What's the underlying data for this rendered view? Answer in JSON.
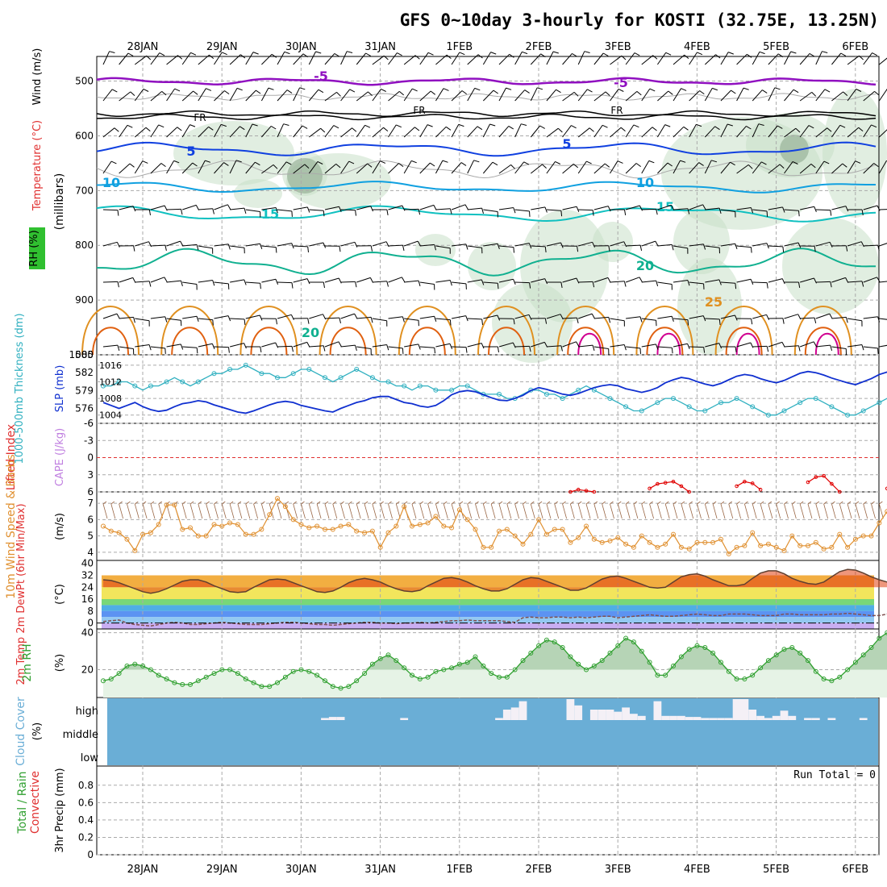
{
  "title": "GFS 0~10day 3-hourly for KOSTI (32.75E, 13.25N)",
  "dates": [
    "28JAN",
    "29JAN",
    "30JAN",
    "31JAN",
    "1FEB",
    "2FEB",
    "3FEB",
    "4FEB",
    "5FEB",
    "6FEB"
  ],
  "colors": {
    "wind_barb": "#000000",
    "temp_purple": "#9010c0",
    "temp_blue": "#1040e0",
    "temp_lightblue": "#10a0e0",
    "temp_cyan": "#10c0c0",
    "temp_green": "#10b090",
    "temp_orange": "#e09020",
    "temp_darkorange": "#e06010",
    "temp_magenta": "#d00090",
    "rh_shade": "#c8e0c8",
    "slp": "#1030d0",
    "thickness": "#30b0c0",
    "lifted_index": "#e00000",
    "wind10m": "#e09030",
    "rh2m": "#30a030",
    "cloud": "#6aaed6",
    "precip_total": "#30a030",
    "precip_conv": "#e03030"
  },
  "panels": {
    "upper": {
      "ylabel_rh": "RH (%)",
      "ylabel_temp": "Temperature (°C)",
      "ylabel_wind": "Wind (m/s)",
      "ylabel_mb": "(millibars)",
      "pressure_ticks": [
        "500",
        "600",
        "700",
        "800",
        "900",
        "1000"
      ],
      "contour_labels": [
        {
          "text": "-5",
          "color": "temp_purple"
        },
        {
          "text": "-5",
          "color": "temp_purple"
        },
        {
          "text": "FR",
          "color": "wind_barb"
        },
        {
          "text": "FR",
          "color": "wind_barb"
        },
        {
          "text": "FR",
          "color": "wind_barb"
        },
        {
          "text": "5",
          "color": "temp_blue"
        },
        {
          "text": "5",
          "color": "temp_blue"
        },
        {
          "text": "10",
          "color": "temp_lightblue"
        },
        {
          "text": "10",
          "color": "temp_lightblue"
        },
        {
          "text": "15",
          "color": "temp_cyan"
        },
        {
          "text": "15",
          "color": "temp_cyan"
        },
        {
          "text": "20",
          "color": "temp_green"
        },
        {
          "text": "20",
          "color": "temp_green"
        },
        {
          "text": "25",
          "color": "temp_orange"
        }
      ]
    },
    "slp": {
      "ylabel_thick": "1000-500mb Thickness (dm)",
      "ylabel_slp": "SLP (mb)",
      "left_ticks": [
        "585",
        "582",
        "579",
        "576"
      ],
      "right_ticks": [
        "1016",
        "1012",
        "1008",
        "1004"
      ]
    },
    "cape": {
      "ylabel_li": "Lifted Index",
      "ylabel_cape": "CAPE (J/kg)",
      "ticks": [
        "-6",
        "-3",
        "0",
        "3",
        "6"
      ]
    },
    "wind10m": {
      "ylabel": "10m Wind Speed & Barbs",
      "ylabel_unit": "(m/s)",
      "ticks": [
        "7",
        "6",
        "5",
        "4"
      ]
    },
    "temp2m": {
      "ylabel": "2m Temp 2m DewPt (6hr Min/Max)",
      "ylabel_unit": "(°C)",
      "ticks": [
        "40",
        "32",
        "24",
        "16",
        "8",
        "0"
      ]
    },
    "rh2m": {
      "ylabel": "2m RH",
      "ylabel_unit": "(%)",
      "ticks": [
        "40",
        "20"
      ]
    },
    "cloud": {
      "ylabel": "Cloud Cover",
      "ylabel_unit": "(%)",
      "levels": [
        "high",
        "middle",
        "low"
      ]
    },
    "precip": {
      "ylabel_total": "Total / Rain",
      "ylabel_conv": "Convective",
      "ylabel_unit": "3hr Precip (mm)",
      "ticks": [
        "0.8",
        "0.6",
        "0.4",
        "0.2",
        "0"
      ],
      "run_total": "Run Total = 0"
    }
  },
  "chart_data": [
    {
      "type": "line",
      "name": "SLP & 1000-500mb thickness",
      "x": "3-hourly steps, 28JAN to 6FEB",
      "series": [
        {
          "name": "SLP (mb)",
          "axis": "right",
          "range": [
            1002,
            1018
          ],
          "values": [
            1011,
            1011,
            1012,
            1012,
            1011,
            1010,
            1011,
            1011,
            1012,
            1013,
            1012,
            1011,
            1012,
            1013,
            1014,
            1014,
            1015,
            1015,
            1016,
            1015,
            1014,
            1014,
            1013,
            1013,
            1014,
            1015,
            1015,
            1014,
            1013,
            1012,
            1013,
            1014,
            1015,
            1014,
            1013,
            1012,
            1012,
            1011,
            1011,
            1010,
            1011,
            1011,
            1010,
            1010,
            1010,
            1011,
            1011,
            1010,
            1009,
            1009,
            1009,
            1008,
            1008,
            1009,
            1010,
            1010,
            1009,
            1009,
            1008,
            1009,
            1010,
            1011,
            1010,
            1009,
            1008,
            1007,
            1006,
            1005,
            1005,
            1006,
            1007,
            1008,
            1008,
            1007,
            1006,
            1005,
            1005,
            1006,
            1007,
            1007,
            1008,
            1007,
            1006,
            1005,
            1004,
            1004,
            1005,
            1006,
            1007,
            1008,
            1008,
            1007,
            1006,
            1005,
            1004,
            1004,
            1005,
            1006,
            1007,
            1008,
            1009,
            1010
          ]
        },
        {
          "name": "1000-500mb thickness (dm)",
          "axis": "left",
          "range": [
            574,
            585
          ],
          "values": [
            577,
            576.5,
            576,
            576.5,
            577,
            576.3,
            575.8,
            575.5,
            575.7,
            576.3,
            576.8,
            577,
            577.3,
            577.1,
            576.6,
            576.2,
            575.8,
            575.4,
            575.2,
            575.6,
            576.1,
            576.6,
            577,
            577.2,
            577,
            576.5,
            576.2,
            575.9,
            575.6,
            575.4,
            576,
            576.5,
            577,
            577.3,
            577.8,
            578,
            578,
            577.5,
            577,
            576.8,
            576.4,
            576.2,
            576.5,
            577.3,
            578.3,
            578.8,
            579,
            578.8,
            578.3,
            577.8,
            577.4,
            577.3,
            577.7,
            578.2,
            579,
            579.5,
            579.2,
            578.8,
            578.4,
            578.2,
            578.5,
            579,
            579.5,
            579.8,
            580,
            579.8,
            579.3,
            579,
            578.7,
            579,
            579.5,
            580.3,
            580.8,
            581.2,
            581,
            580.5,
            580.1,
            579.8,
            580.2,
            580.8,
            581.4,
            581.7,
            581.5,
            581,
            580.6,
            580.3,
            580.7,
            581.3,
            581.9,
            582.2,
            582,
            581.6,
            581.1,
            580.7,
            580.3,
            580,
            580.5,
            581,
            581.7,
            582.1,
            581.8,
            580.3
          ]
        }
      ]
    },
    {
      "type": "line",
      "name": "Lifted Index",
      "range": [
        -6,
        6
      ],
      "points": [
        [
          59,
          6
        ],
        [
          60,
          5.6
        ],
        [
          61,
          5.8
        ],
        [
          62,
          6
        ],
        [
          69,
          5.4
        ],
        [
          70,
          4.6
        ],
        [
          71,
          4.4
        ],
        [
          72,
          4.2
        ],
        [
          73,
          5
        ],
        [
          74,
          6
        ],
        [
          80,
          5
        ],
        [
          81,
          4.2
        ],
        [
          82,
          4.5
        ],
        [
          83,
          5.6
        ],
        [
          89,
          4.3
        ],
        [
          90,
          3.4
        ],
        [
          91,
          3.2
        ],
        [
          92,
          4.6
        ],
        [
          93,
          6
        ],
        [
          99,
          5.4
        ],
        [
          100,
          4.3
        ],
        [
          101,
          6
        ]
      ]
    },
    {
      "type": "line",
      "name": "10m wind speed (m/s)",
      "range": [
        3.6,
        7.6
      ],
      "values": [
        5.6,
        5.3,
        5.2,
        4.8,
        4.1,
        5.1,
        5.2,
        5.7,
        6.9,
        6.9,
        5.4,
        5.5,
        5.0,
        5.0,
        5.7,
        5.6,
        5.8,
        5.7,
        5.1,
        5.1,
        5.4,
        6.3,
        7.3,
        6.8,
        6.0,
        5.7,
        5.5,
        5.6,
        5.4,
        5.4,
        5.6,
        5.7,
        5.3,
        5.2,
        5.3,
        4.3,
        5.2,
        5.6,
        6.8,
        5.6,
        5.7,
        5.8,
        6.2,
        5.6,
        5.5,
        6.6,
        6.0,
        5.4,
        4.3,
        4.3,
        5.3,
        5.4,
        5.0,
        4.5,
        5.1,
        6.0,
        5.1,
        5.4,
        5.4,
        4.6,
        4.9,
        5.6,
        4.8,
        4.6,
        4.7,
        4.9,
        4.5,
        4.3,
        5.0,
        4.6,
        4.3,
        4.5,
        5.1,
        4.3,
        4.2,
        4.6,
        4.6,
        4.6,
        4.8,
        3.9,
        4.3,
        4.4,
        5.2,
        4.4,
        4.5,
        4.3,
        4.1,
        5.0,
        4.4,
        4.4,
        4.6,
        4.2,
        4.3,
        5.1,
        4.3,
        4.8,
        5.0,
        5.0,
        5.8,
        6.5,
        7.4,
        6.6,
        7.2
      ]
    },
    {
      "type": "area",
      "name": "2m temperature (°C)",
      "range": [
        -4,
        42
      ],
      "values": [
        29,
        28.5,
        27,
        25,
        23,
        21,
        20,
        21,
        23,
        25.5,
        28,
        29,
        29,
        27.5,
        25,
        23,
        21,
        20.5,
        21,
        24,
        26.5,
        29,
        29.5,
        29,
        27,
        25,
        23,
        21,
        20.5,
        21.5,
        24,
        27,
        29,
        30,
        29,
        27.5,
        25,
        23,
        21.5,
        21,
        22,
        25,
        27.5,
        30,
        30.5,
        29.5,
        27.5,
        25,
        23,
        21.5,
        21.5,
        23,
        26,
        29,
        30.5,
        30,
        28,
        26,
        24,
        22,
        22,
        23.5,
        26.5,
        29.5,
        31,
        31.5,
        30,
        28,
        26,
        24,
        23.5,
        24,
        27.5,
        31,
        32.5,
        33,
        31.5,
        29,
        27,
        25,
        25,
        26,
        30,
        33.5,
        35,
        35,
        33,
        30,
        28,
        26.5,
        26,
        27.5,
        31,
        34.5,
        36,
        35.5,
        33.5,
        31,
        29,
        27.5,
        27,
        27,
        26
      ]
    },
    {
      "type": "line",
      "name": "2m dew point (°C)",
      "values": [
        1,
        1.5,
        2,
        0,
        -1,
        -1.5,
        -2,
        -1,
        0,
        0.5,
        0,
        -1,
        -1,
        -0.5,
        0,
        0.5,
        0,
        -0.5,
        -1,
        -1,
        -1,
        -0.5,
        0,
        0.5,
        0.5,
        0,
        -0.5,
        -1,
        -1,
        -1.5,
        -1,
        -0.5,
        0,
        0.5,
        0.5,
        0,
        0,
        -0.5,
        0,
        0,
        0.5,
        0,
        0.5,
        1,
        1.5,
        1.5,
        2,
        1.5,
        1.5,
        1.5,
        1.5,
        1,
        0.5,
        3.5,
        4,
        3.5,
        3.5,
        4,
        4,
        3.5,
        4,
        3.5,
        4,
        4.5,
        4.5,
        3.5,
        4,
        4.5,
        5,
        5.5,
        5,
        4.5,
        4.5,
        5,
        5.5,
        6,
        5.5,
        5,
        5,
        6,
        6,
        6,
        5.5,
        5,
        5,
        5,
        6,
        6,
        5.5,
        5.5,
        5.5,
        5.5,
        6,
        6,
        6.5,
        6,
        5.5,
        5,
        5,
        6,
        6,
        6.5,
        6.5,
        8
      ]
    },
    {
      "type": "area",
      "name": "2m RH (%)",
      "range": [
        5,
        42
      ],
      "values": [
        14,
        15,
        18,
        22,
        23,
        22,
        20,
        17,
        15,
        13,
        12,
        12,
        14,
        16,
        18,
        20,
        20,
        18,
        15,
        13,
        11,
        11,
        13,
        16,
        19,
        20,
        19,
        17,
        14,
        11,
        10,
        11,
        14,
        18,
        23,
        26,
        28,
        25,
        21,
        17,
        15,
        16,
        19,
        20,
        21,
        23,
        24,
        27,
        22,
        18,
        16,
        16,
        20,
        25,
        29,
        33,
        36,
        35,
        32,
        27,
        23,
        20,
        22,
        25,
        29,
        33,
        37,
        35,
        30,
        24,
        17,
        17,
        22,
        27,
        31,
        33,
        32,
        29,
        24,
        19,
        15,
        15,
        17,
        21,
        25,
        28,
        31,
        32,
        29,
        25,
        19,
        15,
        14,
        16,
        20,
        24,
        28,
        32,
        37,
        40
      ]
    },
    {
      "type": "bar",
      "name": "High cloud cover (fraction)",
      "categories": "3-hourly steps",
      "values": [
        0,
        0,
        0,
        0,
        0,
        0,
        0,
        0,
        0,
        0,
        0,
        0,
        0,
        0,
        0,
        0,
        0,
        0,
        0,
        0,
        0,
        0,
        0,
        0,
        0,
        0,
        0,
        0,
        0.1,
        0.15,
        0.15,
        0,
        0,
        0,
        0,
        0,
        0,
        0,
        0.1,
        0,
        0,
        0,
        0,
        0,
        0,
        0,
        0,
        0,
        0,
        0,
        0.1,
        0.5,
        0.6,
        0.9,
        0,
        0,
        0,
        0,
        0,
        1,
        0.7,
        0,
        0.5,
        0.5,
        0.5,
        0.4,
        0.6,
        0.3,
        0.2,
        0,
        0.9,
        0.2,
        0.2,
        0.2,
        0.15,
        0.15,
        0.1,
        0.1,
        0.1,
        0.1,
        1,
        1,
        0.5,
        0.2,
        0.1,
        0.2,
        0.45,
        0.2,
        0,
        0.1,
        0.1,
        0,
        0.1,
        0,
        0,
        0,
        0.1,
        0,
        0,
        0,
        0.1,
        0.1
      ]
    },
    {
      "type": "bar",
      "name": "3hr precipitation (mm)",
      "range": [
        0,
        1
      ],
      "values": []
    }
  ]
}
